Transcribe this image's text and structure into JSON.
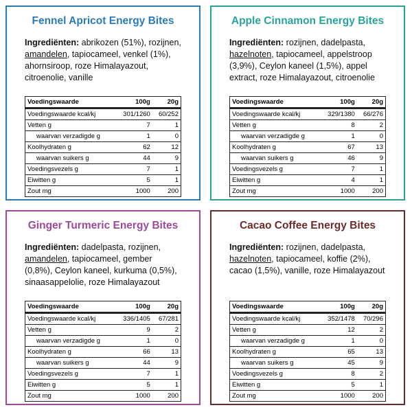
{
  "cards": [
    {
      "title": "Fennel Apricot Energy Bites",
      "color": "#2b7bb9",
      "ingredients_label": "Ingrediënten:",
      "ingredients": [
        {
          "text": "abrikozen (51%), rozijnen, ",
          "underline": false
        },
        {
          "text": "amandelen",
          "underline": true
        },
        {
          "text": ", tapiocameel, venkel (1%), ahornsiroop, roze Himalayazout, citroenolie, vanille",
          "underline": false
        }
      ],
      "table": {
        "header": [
          "Voedingswaarde",
          "100g",
          "20g"
        ],
        "rows": [
          {
            "label": "Voedingswaarde kcal/kj",
            "per100": "301/1260",
            "per20": "60/252",
            "indent": false
          },
          {
            "label": "Vetten g",
            "per100": "7",
            "per20": "1",
            "indent": false
          },
          {
            "label": "waarvan verzadigde g",
            "per100": "1",
            "per20": "0",
            "indent": true
          },
          {
            "label": "Koolhydraten g",
            "per100": "62",
            "per20": "12",
            "indent": false
          },
          {
            "label": "waarvan suikers g",
            "per100": "44",
            "per20": "9",
            "indent": true
          },
          {
            "label": "Voedingsvezels g",
            "per100": "7",
            "per20": "1",
            "indent": false
          },
          {
            "label": "Eiwitten g",
            "per100": "5",
            "per20": "1",
            "indent": false
          },
          {
            "label": "Zout mg",
            "per100": "1000",
            "per20": "200",
            "indent": false
          }
        ]
      }
    },
    {
      "title": "Apple Cinnamon Energy Bites",
      "color": "#2aa39a",
      "ingredients_label": "Ingrediënten:",
      "ingredients": [
        {
          "text": "rozijnen, dadelpasta, ",
          "underline": false
        },
        {
          "text": "hazelnoten",
          "underline": true
        },
        {
          "text": ", tapiocameel, appelstroop (3,9%), Ceylon kaneel (1,5%), appel extract, roze Himalayazout, citroenolie",
          "underline": false
        }
      ],
      "table": {
        "header": [
          "Voedingswaarde",
          "100g",
          "20g"
        ],
        "rows": [
          {
            "label": "Voedingswaarde kcal/kj",
            "per100": "329/1380",
            "per20": "66/276",
            "indent": false
          },
          {
            "label": "Vetten g",
            "per100": "8",
            "per20": "2",
            "indent": false
          },
          {
            "label": "waarvan verzadigde g",
            "per100": "1",
            "per20": "0",
            "indent": true
          },
          {
            "label": "Koolhydraten g",
            "per100": "67",
            "per20": "13",
            "indent": false
          },
          {
            "label": "waarvan suikers g",
            "per100": "46",
            "per20": "9",
            "indent": true
          },
          {
            "label": "Voedingsvezels g",
            "per100": "7",
            "per20": "1",
            "indent": false
          },
          {
            "label": "Eiwitten g",
            "per100": "4",
            "per20": "1",
            "indent": false
          },
          {
            "label": "Zout mg",
            "per100": "1000",
            "per20": "200",
            "indent": false
          }
        ]
      }
    },
    {
      "title": "Ginger Turmeric Energy Bites",
      "color": "#9c4a9a",
      "ingredients_label": "Ingrediënten:",
      "ingredients": [
        {
          "text": "dadelpasta, rozijnen, ",
          "underline": false
        },
        {
          "text": "amandelen",
          "underline": true
        },
        {
          "text": ", tapiocameel, gember (0,8%), Ceylon kaneel, kurkuma (0,5%), sinaasappelolie, roze Himalayazout",
          "underline": false
        }
      ],
      "table": {
        "header": [
          "Voedingswaarde",
          "100g",
          "20g"
        ],
        "rows": [
          {
            "label": "Voedingswaarde kcal/kj",
            "per100": "336/1405",
            "per20": "67/281",
            "indent": false
          },
          {
            "label": "Vetten g",
            "per100": "9",
            "per20": "2",
            "indent": false
          },
          {
            "label": "waarvan verzadigde g",
            "per100": "1",
            "per20": "0",
            "indent": true
          },
          {
            "label": "Koolhydraten g",
            "per100": "66",
            "per20": "13",
            "indent": false
          },
          {
            "label": "waarvan suikers g",
            "per100": "44",
            "per20": "9",
            "indent": true
          },
          {
            "label": "Voedingsvezels g",
            "per100": "7",
            "per20": "1",
            "indent": false
          },
          {
            "label": "Eiwitten g",
            "per100": "5",
            "per20": "1",
            "indent": false
          },
          {
            "label": "Zout mg",
            "per100": "1000",
            "per20": "200",
            "indent": false
          }
        ]
      }
    },
    {
      "title": "Cacao Coffee Energy Bites",
      "color": "#6b2b2b",
      "ingredients_label": "Ingrediënten:",
      "ingredients": [
        {
          "text": "rozijnen, dadelpasta, ",
          "underline": false
        },
        {
          "text": "hazelnoten",
          "underline": true
        },
        {
          "text": ", tapiocameel, koffie (2%), cacao (1,5%), vanille, roze Himalayazout",
          "underline": false
        }
      ],
      "table": {
        "header": [
          "Voedingswaarde",
          "100g",
          "20g"
        ],
        "rows": [
          {
            "label": "Voedingswaarde kcal/kj",
            "per100": "352/1478",
            "per20": "70/296",
            "indent": false
          },
          {
            "label": "Vetten g",
            "per100": "12",
            "per20": "2",
            "indent": false
          },
          {
            "label": "waarvan verzadigde g",
            "per100": "1",
            "per20": "0",
            "indent": true
          },
          {
            "label": "Koolhydraten g",
            "per100": "65",
            "per20": "13",
            "indent": false
          },
          {
            "label": "waarvan suikers g",
            "per100": "45",
            "per20": "9",
            "indent": true
          },
          {
            "label": "Voedingsvezels g",
            "per100": "8",
            "per20": "2",
            "indent": false
          },
          {
            "label": "Eiwitten g",
            "per100": "5",
            "per20": "1",
            "indent": false
          },
          {
            "label": "Zout mg",
            "per100": "1000",
            "per20": "200",
            "indent": false
          }
        ]
      }
    }
  ]
}
